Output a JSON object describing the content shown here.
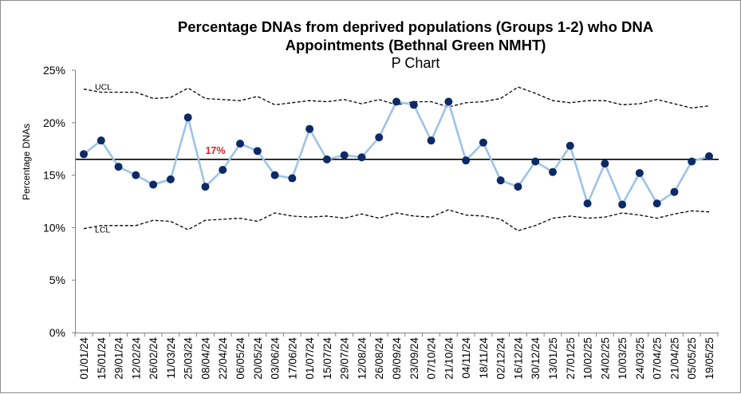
{
  "chart_data": {
    "type": "line",
    "chart_subtype": "p-chart",
    "title_line1": "Percentage DNAs from deprived populations (Groups 1-2) who DNA",
    "title_line2": "Appointments  (Bethnal Green NMHT)",
    "subtitle": "P Chart",
    "xlabel": "",
    "ylabel": "Percentage DNAs",
    "ylim": [
      0,
      25
    ],
    "yticks": [
      "0%",
      "5%",
      "10%",
      "15%",
      "20%",
      "25%"
    ],
    "ytick_values": [
      0,
      5,
      10,
      15,
      20,
      25
    ],
    "x_tick_labels": [
      "01/01/24",
      "15/01/24",
      "29/01/24",
      "12/02/24",
      "26/02/24",
      "11/03/24",
      "25/03/24",
      "08/04/24",
      "22/04/24",
      "06/05/24",
      "20/05/24",
      "03/06/24",
      "17/06/24",
      "01/07/24",
      "15/07/24",
      "29/07/24",
      "12/08/24",
      "26/08/24",
      "09/09/24",
      "23/09/24",
      "07/10/24",
      "21/10/24",
      "04/11/24",
      "18/11/24",
      "02/12/24",
      "16/12/24",
      "30/12/24",
      "13/01/25",
      "27/01/25",
      "10/02/25",
      "24/02/25",
      "10/03/25",
      "24/03/25",
      "07/04/25",
      "21/04/25",
      "05/05/25",
      "19/05/25"
    ],
    "series": [
      {
        "role": "data",
        "color": "#9dc3e6",
        "marker_color": "#0d2a66",
        "values": [
          17.0,
          18.3,
          15.8,
          15.0,
          14.1,
          14.6,
          20.5,
          13.9,
          15.5,
          18.0,
          17.3,
          15.0,
          14.7,
          19.4,
          16.5,
          16.9,
          16.7,
          18.6,
          22.0,
          21.7,
          18.3,
          22.0,
          16.4,
          18.1,
          14.5,
          13.9,
          16.3,
          15.3,
          17.8,
          12.3,
          16.1,
          12.2,
          15.2,
          12.3,
          13.4,
          16.3,
          16.8
        ]
      },
      {
        "role": "mean",
        "name": "17%",
        "color": "#000000",
        "value": 16.5
      },
      {
        "role": "ucl",
        "name": "UCL",
        "color": "#000000",
        "values": [
          23.2,
          22.9,
          22.9,
          22.9,
          22.3,
          22.4,
          23.3,
          22.3,
          22.2,
          22.1,
          22.5,
          21.7,
          21.9,
          22.1,
          22.0,
          22.2,
          21.8,
          22.2,
          21.7,
          22.0,
          22.0,
          21.5,
          21.9,
          22.0,
          22.3,
          23.4,
          22.8,
          22.1,
          21.9,
          22.1,
          22.1,
          21.7,
          21.8,
          22.2,
          21.8,
          21.4,
          21.6
        ]
      },
      {
        "role": "lcl",
        "name": "LCL",
        "color": "#000000",
        "values": [
          9.9,
          10.2,
          10.2,
          10.2,
          10.7,
          10.6,
          9.8,
          10.7,
          10.8,
          10.9,
          10.6,
          11.4,
          11.1,
          11.0,
          11.1,
          10.9,
          11.3,
          10.9,
          11.4,
          11.1,
          11.0,
          11.7,
          11.2,
          11.1,
          10.8,
          9.7,
          10.2,
          10.9,
          11.1,
          10.9,
          11.0,
          11.4,
          11.2,
          10.9,
          11.3,
          11.6,
          11.5
        ]
      }
    ],
    "mean_label": "17%",
    "mean_label_color": "#e02020",
    "grid": false,
    "legend": "none"
  }
}
